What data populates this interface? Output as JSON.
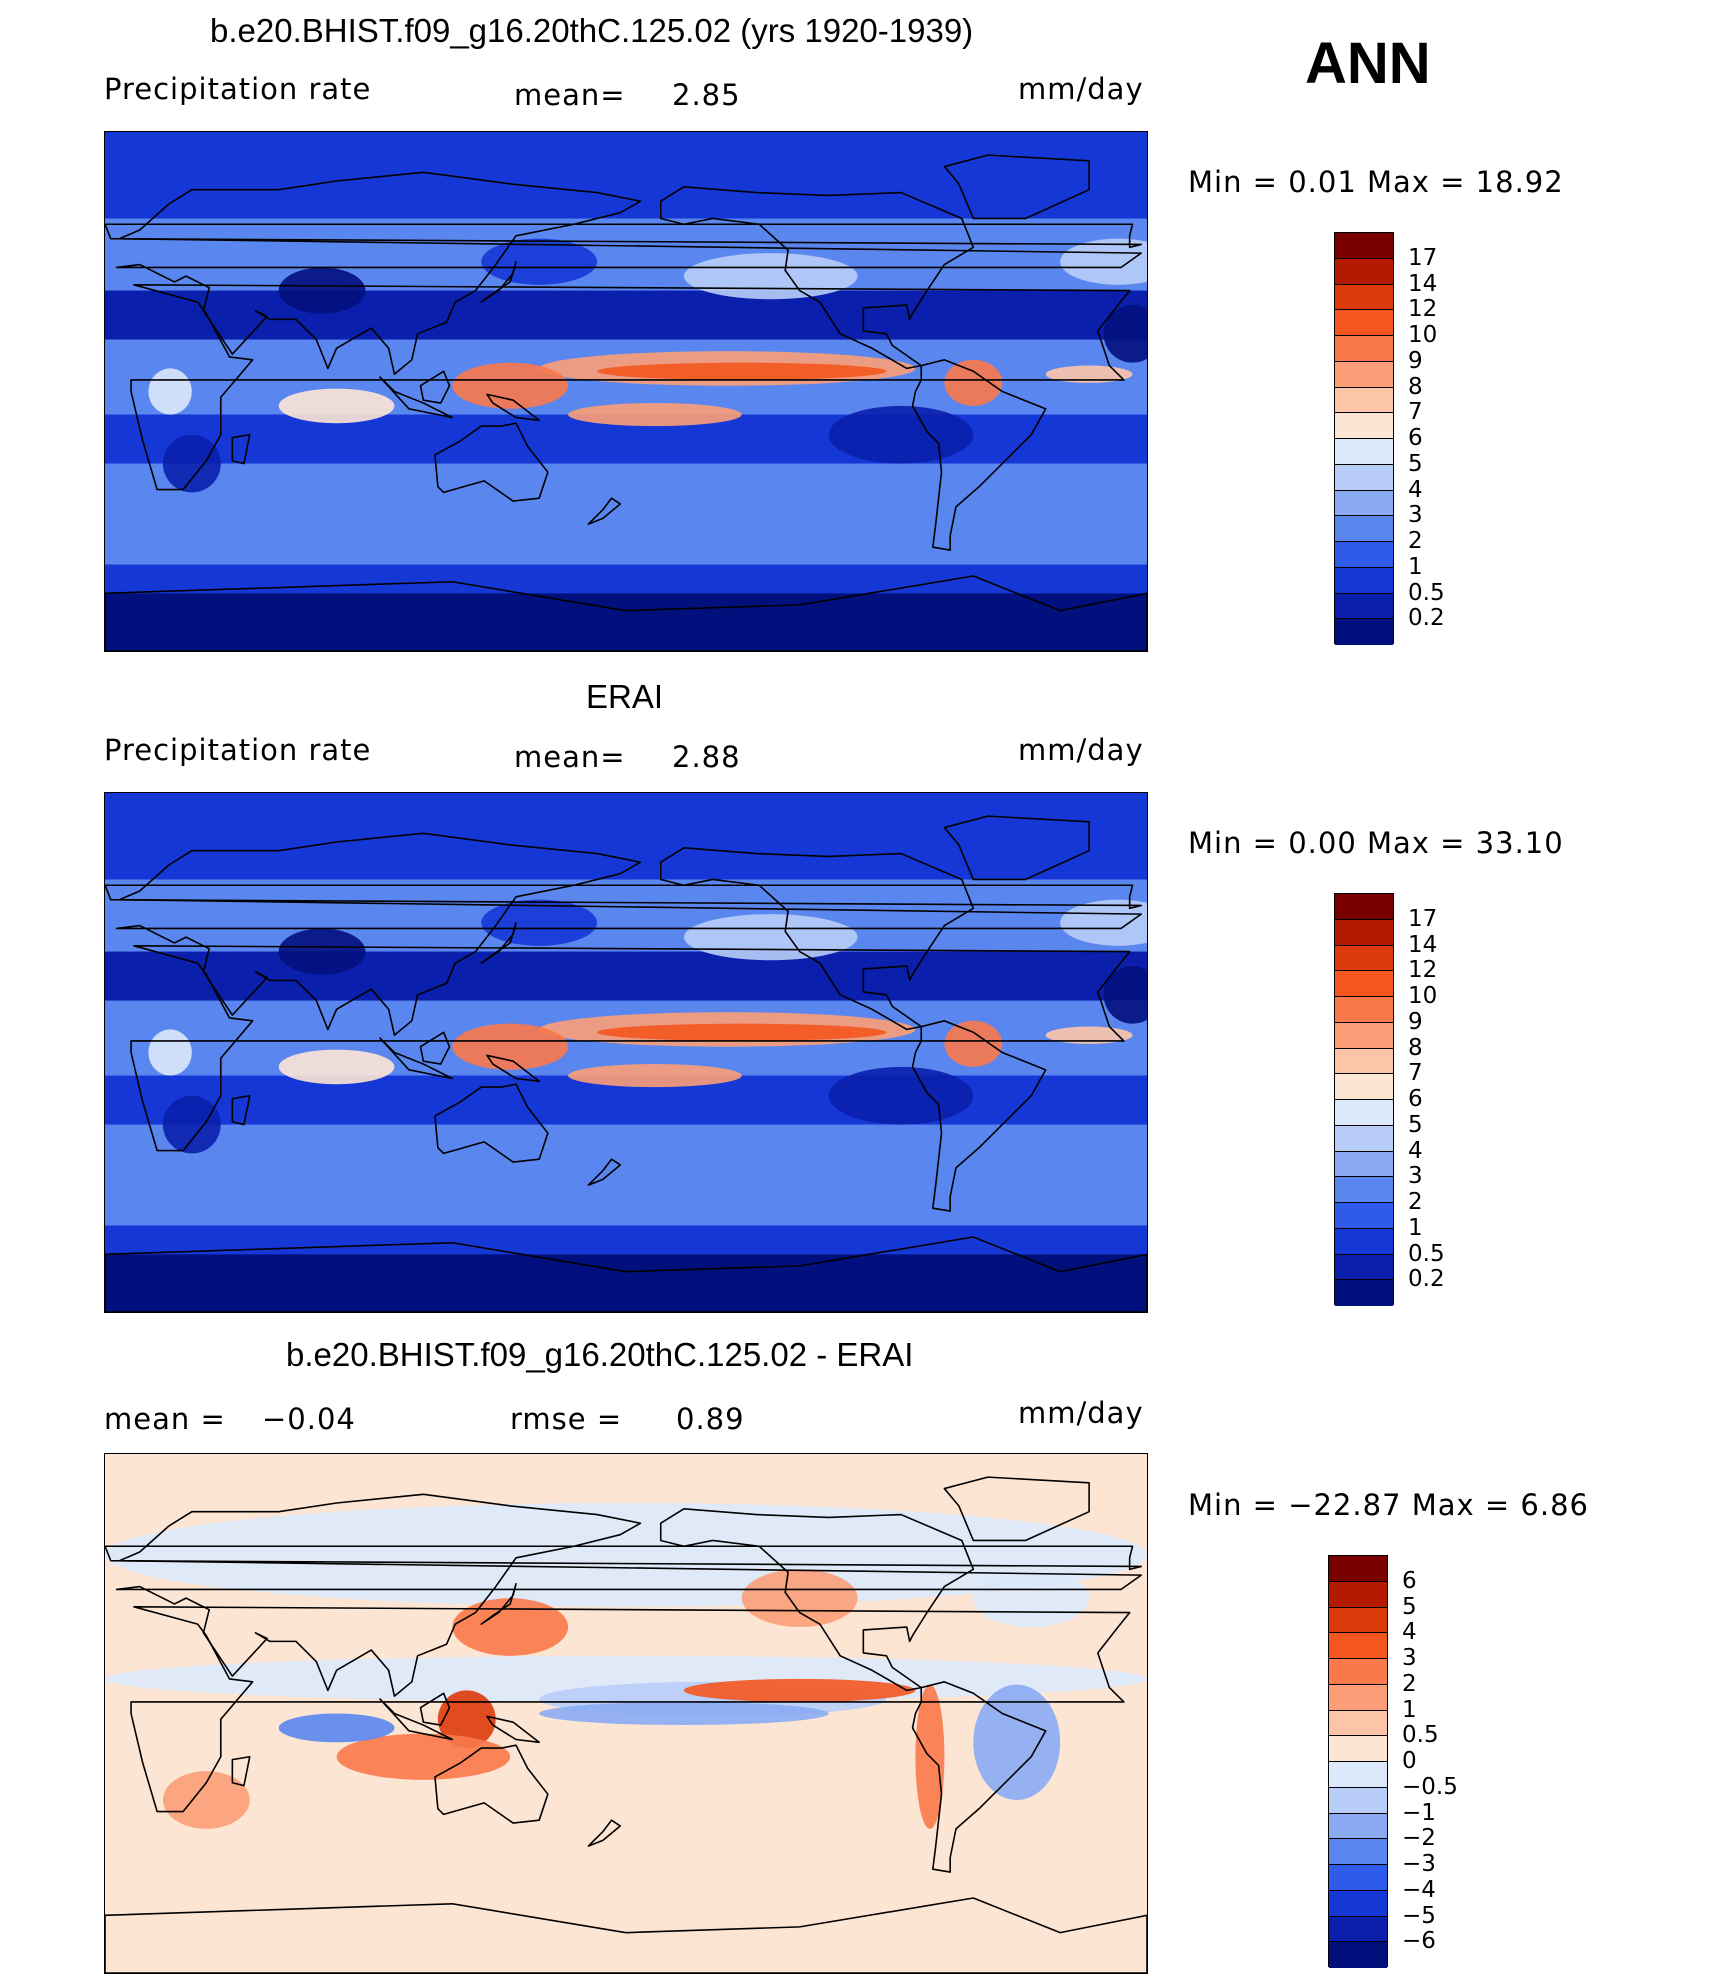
{
  "season": "ANN",
  "panels": [
    {
      "title": "b.e20.BHIST.f09_g16.20thC.125.02 (yrs 1920-1939)",
      "variable": "Precipitation  rate",
      "stat1_label": "mean=",
      "stat1_value": "2.85",
      "units": "mm/day",
      "range_label": "Min  =      0.01  Max  =     18.92",
      "palette": "abs",
      "legend_ticks": [
        "17",
        "14",
        "12",
        "10",
        "9",
        "8",
        "7",
        "6",
        "5",
        "4",
        "3",
        "2",
        "1",
        "0.5",
        "0.2"
      ]
    },
    {
      "title": "ERAI",
      "variable": "Precipitation  rate",
      "stat1_label": "mean=",
      "stat1_value": "2.88",
      "units": "mm/day",
      "range_label": "Min  =      0.00  Max  =     33.10",
      "palette": "abs",
      "legend_ticks": [
        "17",
        "14",
        "12",
        "10",
        "9",
        "8",
        "7",
        "6",
        "5",
        "4",
        "3",
        "2",
        "1",
        "0.5",
        "0.2"
      ]
    },
    {
      "title": "b.e20.BHIST.f09_g16.20thC.125.02 - ERAI",
      "variable": "",
      "stat1_label": "mean  =",
      "stat1_value": "−0.04",
      "stat2_label": "rmse  =",
      "stat2_value": "0.89",
      "units": "mm/day",
      "range_label": "Min  =  −22.87  Max  =      6.86",
      "palette": "diff",
      "legend_ticks": [
        "6",
        "5",
        "4",
        "3",
        "2",
        "1",
        "0.5",
        "0",
        "−0.5",
        "−1",
        "−2",
        "−3",
        "−4",
        "−5",
        "−6"
      ]
    }
  ],
  "colors": {
    "abs_scale": [
      "#7a0000",
      "#b31a00",
      "#dd3a0b",
      "#f4571e",
      "#f9794a",
      "#fb9e77",
      "#fdc5a8",
      "#fde5d4",
      "#dce9fb",
      "#b8cdf8",
      "#8aabf4",
      "#5a86ef",
      "#2f5bea",
      "#1537d6",
      "#0a1fac",
      "#02107e"
    ],
    "diff_scale": [
      "#7a0000",
      "#b31a00",
      "#dd3a0b",
      "#f4571e",
      "#f9794a",
      "#fb9e77",
      "#fdc5a8",
      "#fde5d4",
      "#dce9fb",
      "#b8cdf8",
      "#8aabf4",
      "#5a86ef",
      "#2f5bea",
      "#1537d6",
      "#0a1fac",
      "#02107e"
    ],
    "coast": "#000000"
  }
}
